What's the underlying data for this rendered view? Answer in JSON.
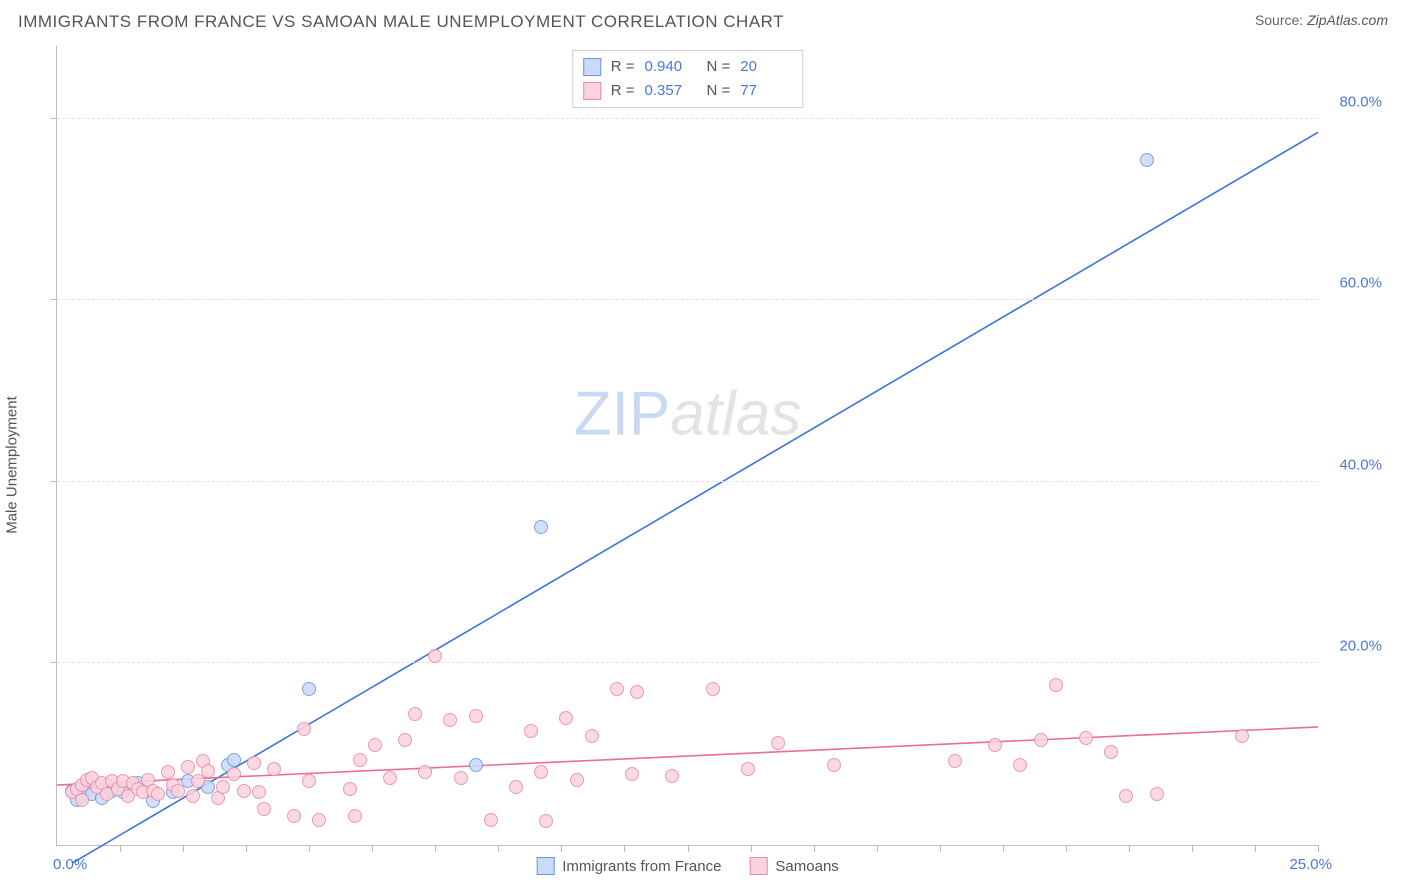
{
  "header": {
    "title": "IMMIGRANTS FROM FRANCE VS SAMOAN MALE UNEMPLOYMENT CORRELATION CHART",
    "source_label": "Source:",
    "source_value": "ZipAtlas.com"
  },
  "ylabel": "Male Unemployment",
  "watermark": {
    "zip": "ZIP",
    "atlas": "atlas"
  },
  "chart": {
    "type": "scatter",
    "xlim": [
      0,
      25
    ],
    "ylim": [
      0,
      88
    ],
    "x_tick_step": 1.25,
    "y_tick_step": 20,
    "y_tick_labels": [
      {
        "value": 20,
        "label": "20.0%"
      },
      {
        "value": 40,
        "label": "40.0%"
      },
      {
        "value": 60,
        "label": "60.0%"
      },
      {
        "value": 80,
        "label": "80.0%"
      }
    ],
    "x_start_label": "0.0%",
    "x_end_label": "25.0%",
    "grid_color": "#e2e2e2",
    "axis_color": "#bdbdbd",
    "tick_label_color": "#4a78d6",
    "background_color": "#ffffff",
    "marker_radius": 7,
    "series": [
      {
        "key": "france",
        "label": "Immigrants from France",
        "fill": "#cadafb",
        "stroke": "#6b95e0",
        "line_color": "#3d73dd",
        "line_width": 1.6,
        "R": "0.940",
        "N": "20",
        "points": [
          {
            "x": 0.3,
            "y": 6.0
          },
          {
            "x": 0.4,
            "y": 5.0
          },
          {
            "x": 0.5,
            "y": 5.4
          },
          {
            "x": 0.6,
            "y": 6.2
          },
          {
            "x": 0.7,
            "y": 5.6
          },
          {
            "x": 0.9,
            "y": 5.2
          },
          {
            "x": 1.0,
            "y": 6.6
          },
          {
            "x": 1.1,
            "y": 6.0
          },
          {
            "x": 1.3,
            "y": 5.8
          },
          {
            "x": 1.6,
            "y": 6.8
          },
          {
            "x": 1.9,
            "y": 4.8
          },
          {
            "x": 2.3,
            "y": 5.8
          },
          {
            "x": 2.6,
            "y": 7.0
          },
          {
            "x": 3.0,
            "y": 6.4
          },
          {
            "x": 3.4,
            "y": 8.8
          },
          {
            "x": 3.5,
            "y": 9.4
          },
          {
            "x": 5.0,
            "y": 17.2
          },
          {
            "x": 8.3,
            "y": 8.8
          },
          {
            "x": 9.6,
            "y": 35.0
          },
          {
            "x": 21.6,
            "y": 75.5
          }
        ],
        "trend": {
          "x1": 0.3,
          "y1": -2.0,
          "x2": 25.0,
          "y2": 78.5
        }
      },
      {
        "key": "samoan",
        "label": "Samoans",
        "fill": "#fbd3de",
        "stroke": "#e88aa3",
        "line_color": "#ec6e8f",
        "line_width": 1.6,
        "R": "0.357",
        "N": "77",
        "points": [
          {
            "x": 0.3,
            "y": 5.8
          },
          {
            "x": 0.4,
            "y": 6.2
          },
          {
            "x": 0.5,
            "y": 6.6
          },
          {
            "x": 0.5,
            "y": 5.0
          },
          {
            "x": 0.6,
            "y": 7.2
          },
          {
            "x": 0.7,
            "y": 7.4
          },
          {
            "x": 0.8,
            "y": 6.4
          },
          {
            "x": 0.9,
            "y": 6.8
          },
          {
            "x": 1.0,
            "y": 5.6
          },
          {
            "x": 1.1,
            "y": 7.0
          },
          {
            "x": 1.2,
            "y": 6.2
          },
          {
            "x": 1.3,
            "y": 7.0
          },
          {
            "x": 1.4,
            "y": 5.4
          },
          {
            "x": 1.5,
            "y": 6.8
          },
          {
            "x": 1.6,
            "y": 6.2
          },
          {
            "x": 1.7,
            "y": 5.8
          },
          {
            "x": 1.8,
            "y": 7.2
          },
          {
            "x": 1.9,
            "y": 6.0
          },
          {
            "x": 2.0,
            "y": 5.6
          },
          {
            "x": 2.2,
            "y": 8.0
          },
          {
            "x": 2.3,
            "y": 6.6
          },
          {
            "x": 2.4,
            "y": 6.0
          },
          {
            "x": 2.6,
            "y": 8.6
          },
          {
            "x": 2.7,
            "y": 5.4
          },
          {
            "x": 2.8,
            "y": 7.0
          },
          {
            "x": 2.9,
            "y": 9.2
          },
          {
            "x": 3.0,
            "y": 8.2
          },
          {
            "x": 3.2,
            "y": 5.2
          },
          {
            "x": 3.3,
            "y": 6.4
          },
          {
            "x": 3.5,
            "y": 7.8
          },
          {
            "x": 3.7,
            "y": 6.0
          },
          {
            "x": 3.9,
            "y": 9.0
          },
          {
            "x": 4.0,
            "y": 5.8
          },
          {
            "x": 4.1,
            "y": 4.0
          },
          {
            "x": 4.3,
            "y": 8.4
          },
          {
            "x": 4.7,
            "y": 3.2
          },
          {
            "x": 4.9,
            "y": 12.8
          },
          {
            "x": 5.0,
            "y": 7.0
          },
          {
            "x": 5.2,
            "y": 2.8
          },
          {
            "x": 5.8,
            "y": 6.2
          },
          {
            "x": 5.9,
            "y": 3.2
          },
          {
            "x": 6.0,
            "y": 9.4
          },
          {
            "x": 6.3,
            "y": 11.0
          },
          {
            "x": 6.6,
            "y": 7.4
          },
          {
            "x": 6.9,
            "y": 11.6
          },
          {
            "x": 7.1,
            "y": 14.4
          },
          {
            "x": 7.3,
            "y": 8.0
          },
          {
            "x": 7.5,
            "y": 20.8
          },
          {
            "x": 7.8,
            "y": 13.8
          },
          {
            "x": 8.0,
            "y": 7.4
          },
          {
            "x": 8.3,
            "y": 14.2
          },
          {
            "x": 8.6,
            "y": 2.8
          },
          {
            "x": 9.1,
            "y": 6.4
          },
          {
            "x": 9.4,
            "y": 12.6
          },
          {
            "x": 9.6,
            "y": 8.0
          },
          {
            "x": 9.7,
            "y": 2.6
          },
          {
            "x": 10.1,
            "y": 14.0
          },
          {
            "x": 10.3,
            "y": 7.2
          },
          {
            "x": 10.6,
            "y": 12.0
          },
          {
            "x": 11.1,
            "y": 17.2
          },
          {
            "x": 11.4,
            "y": 7.8
          },
          {
            "x": 11.5,
            "y": 16.8
          },
          {
            "x": 12.2,
            "y": 7.6
          },
          {
            "x": 13.0,
            "y": 17.2
          },
          {
            "x": 13.7,
            "y": 8.4
          },
          {
            "x": 14.3,
            "y": 11.2
          },
          {
            "x": 15.4,
            "y": 8.8
          },
          {
            "x": 17.8,
            "y": 9.2
          },
          {
            "x": 18.6,
            "y": 11.0
          },
          {
            "x": 19.1,
            "y": 8.8
          },
          {
            "x": 19.5,
            "y": 11.6
          },
          {
            "x": 19.8,
            "y": 17.6
          },
          {
            "x": 20.4,
            "y": 11.8
          },
          {
            "x": 20.9,
            "y": 10.2
          },
          {
            "x": 21.2,
            "y": 5.4
          },
          {
            "x": 21.8,
            "y": 5.6
          },
          {
            "x": 23.5,
            "y": 12.0
          }
        ],
        "trend": {
          "x1": 0.0,
          "y1": 6.6,
          "x2": 25.0,
          "y2": 13.0
        }
      }
    ]
  },
  "stats_labels": {
    "R": "R =",
    "N": "N ="
  }
}
